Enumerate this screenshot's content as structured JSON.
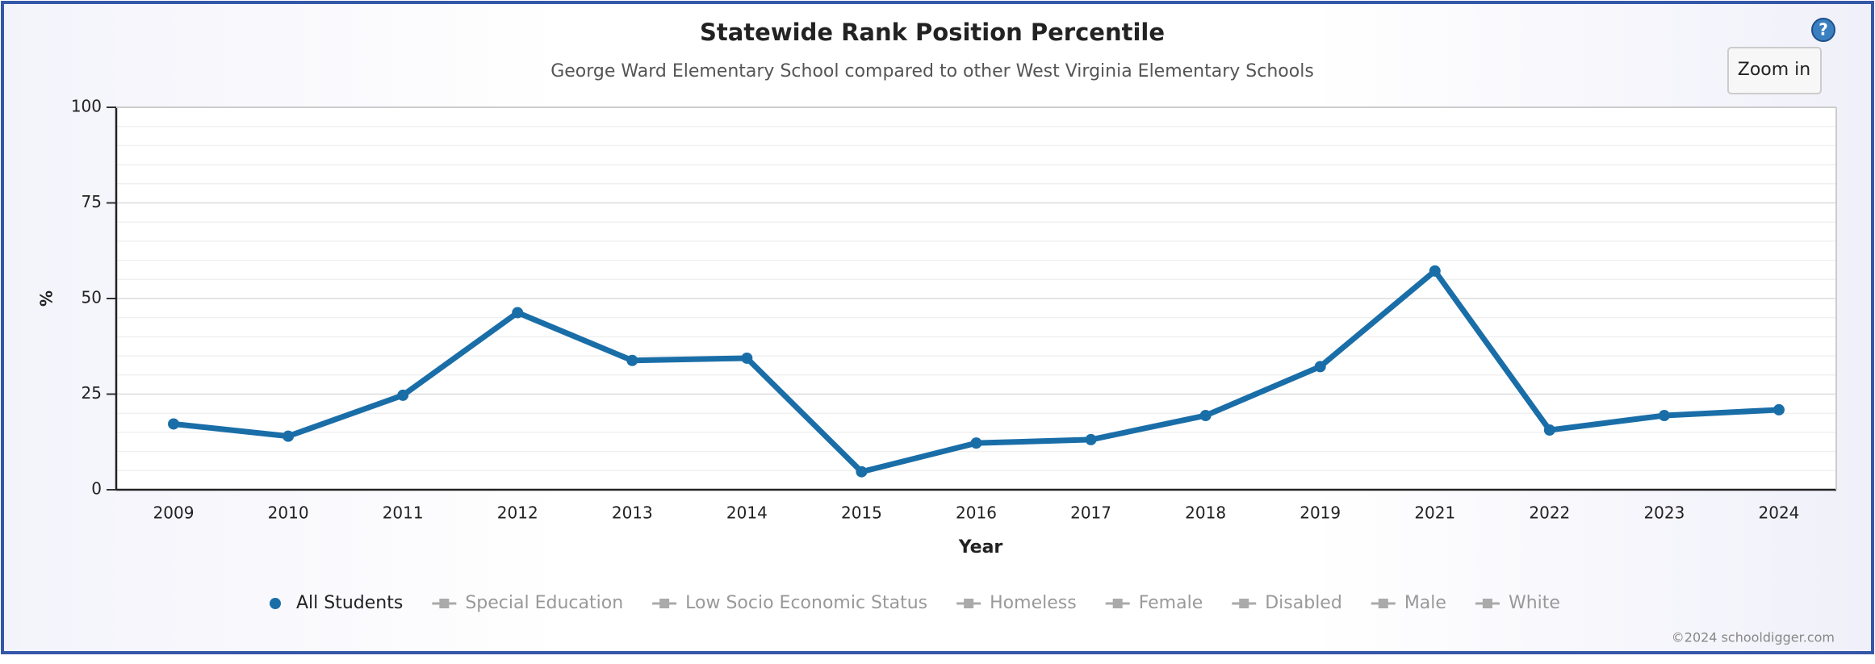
{
  "chart_data": {
    "type": "line",
    "title": "Statewide Rank Position Percentile",
    "subtitle": "George Ward Elementary School compared to other West Virginia Elementary Schools",
    "x_label": "Year",
    "y_label": "%",
    "categories": [
      "2009",
      "2010",
      "2011",
      "2012",
      "2013",
      "2014",
      "2015",
      "2016",
      "2017",
      "2018",
      "2019",
      "2021",
      "2022",
      "2023",
      "2024"
    ],
    "series": [
      {
        "name": "All Students",
        "color": "#1a6ea8",
        "values": [
          17.2,
          14.0,
          24.7,
          46.3,
          33.8,
          34.4,
          4.7,
          12.2,
          13.1,
          19.4,
          32.2,
          57.2,
          15.6,
          19.4,
          20.9
        ]
      }
    ],
    "hidden_series": [
      "Special Education",
      "Low Socio Economic Status",
      "Homeless",
      "Female",
      "Disabled",
      "Male",
      "White"
    ],
    "ylim": [
      0,
      100
    ],
    "yticks": [
      0,
      25,
      50,
      75,
      100
    ],
    "grid": true,
    "minor_grid_divisions": 5,
    "legend": "bottom",
    "zoom_button": "Zoom in",
    "help_icon": "?",
    "credit": "©2024 schooldigger.com"
  }
}
